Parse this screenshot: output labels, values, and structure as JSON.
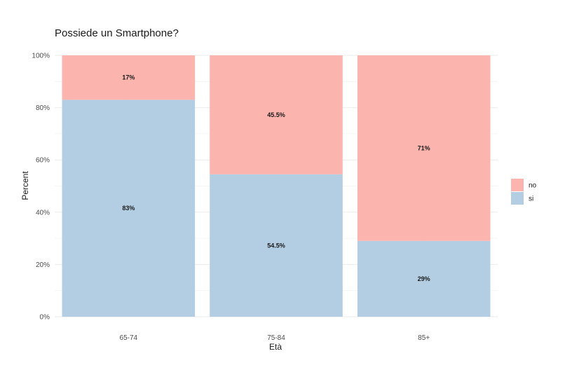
{
  "chart_data": {
    "type": "bar",
    "stacked": true,
    "title": "Possiede un Smartphone?",
    "xlabel": "Età",
    "ylabel": "Percent",
    "categories": [
      "65-74",
      "75-84",
      "85+"
    ],
    "y_ticks": [
      "0%",
      "20%",
      "40%",
      "60%",
      "80%",
      "100%"
    ],
    "ylim": [
      0,
      100
    ],
    "grid": true,
    "legend_position": "right",
    "series": [
      {
        "name": "si",
        "color": "#b3cde3",
        "values": [
          83,
          54.5,
          29
        ],
        "labels": [
          "83%",
          "54.5%",
          "29%"
        ]
      },
      {
        "name": "no",
        "color": "#fbb4ae",
        "values": [
          17,
          45.5,
          71
        ],
        "labels": [
          "17%",
          "45.5%",
          "71%"
        ]
      }
    ],
    "legend_order": [
      "no",
      "si"
    ]
  }
}
